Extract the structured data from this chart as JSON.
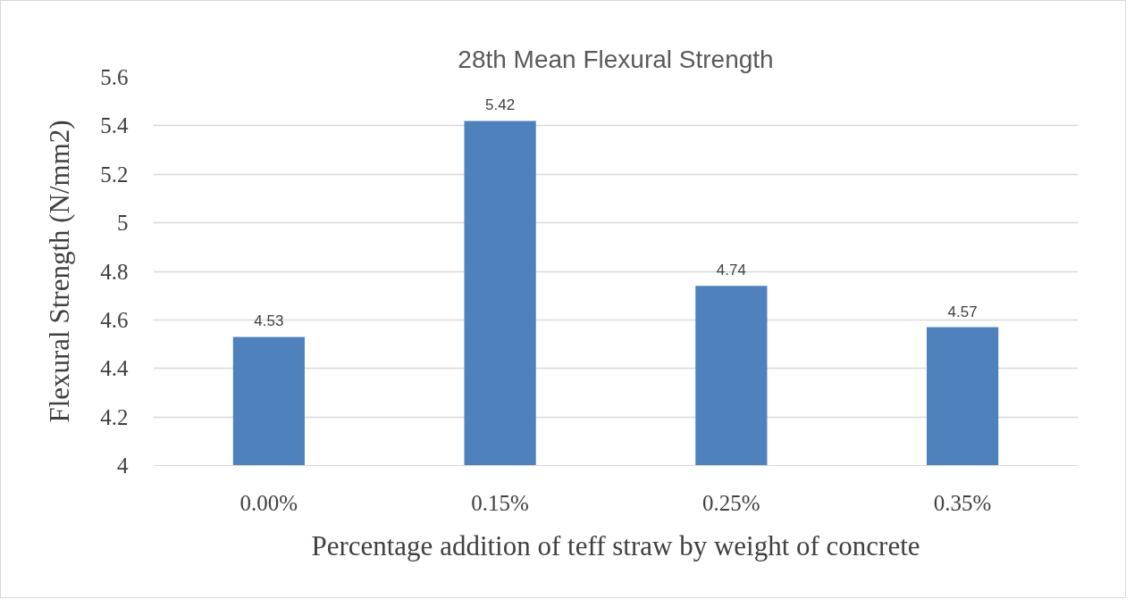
{
  "chart_data": {
    "type": "bar",
    "title": "28th Mean Flexural Strength",
    "xlabel": "Percentage addition of teff straw by weight of concrete",
    "ylabel": "Flexural Strength (N/mm2)",
    "categories": [
      "0.00%",
      "0.15%",
      "0.25%",
      "0.35%"
    ],
    "values": [
      4.53,
      5.42,
      4.74,
      4.57
    ],
    "color": "#4f81bd",
    "ylim": [
      4,
      5.6
    ],
    "yticks": [
      4,
      4.2,
      4.4,
      4.6,
      4.8,
      5,
      5.2,
      5.4,
      5.6
    ],
    "grid": "y",
    "data_labels": true
  }
}
